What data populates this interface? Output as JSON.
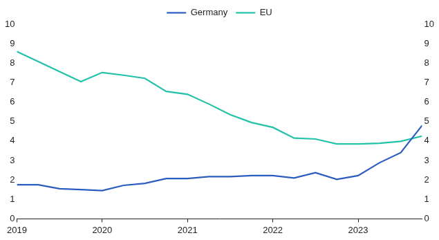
{
  "chart_data": {
    "type": "line",
    "x": [
      2019,
      2019.25,
      2019.5,
      2019.75,
      2020,
      2020.25,
      2020.5,
      2020.75,
      2021,
      2021.25,
      2021.5,
      2021.75,
      2022,
      2022.25,
      2022.5,
      2022.75,
      2023,
      2023.25,
      2023.5,
      2023.75
    ],
    "series": [
      {
        "name": "Germany",
        "color": "#2a5cc0",
        "values": [
          1.75,
          1.75,
          1.55,
          1.5,
          1.45,
          1.72,
          1.82,
          2.07,
          2.07,
          2.17,
          2.17,
          2.22,
          2.22,
          2.1,
          2.37,
          2.03,
          2.22,
          2.88,
          3.4,
          4.8
        ]
      },
      {
        "name": "EU",
        "color": "#22c1a8",
        "values": [
          8.6,
          8.08,
          7.57,
          7.05,
          7.52,
          7.38,
          7.22,
          6.55,
          6.4,
          5.9,
          5.35,
          4.95,
          4.7,
          4.15,
          4.1,
          3.85,
          3.85,
          3.88,
          3.98,
          4.25
        ]
      }
    ],
    "xlim": [
      2019,
      2023.75
    ],
    "xticks": [
      2019,
      2020,
      2021,
      2022,
      2023
    ],
    "ylim": [
      0,
      10
    ],
    "yticks": [
      0,
      1,
      2,
      3,
      4,
      5,
      6,
      7,
      8,
      9,
      10
    ],
    "y2lim": [
      0,
      10
    ],
    "y2ticks": [
      0,
      1,
      2,
      3,
      4,
      5,
      6,
      7,
      8,
      9,
      10
    ],
    "grid": false,
    "legend": "top"
  }
}
